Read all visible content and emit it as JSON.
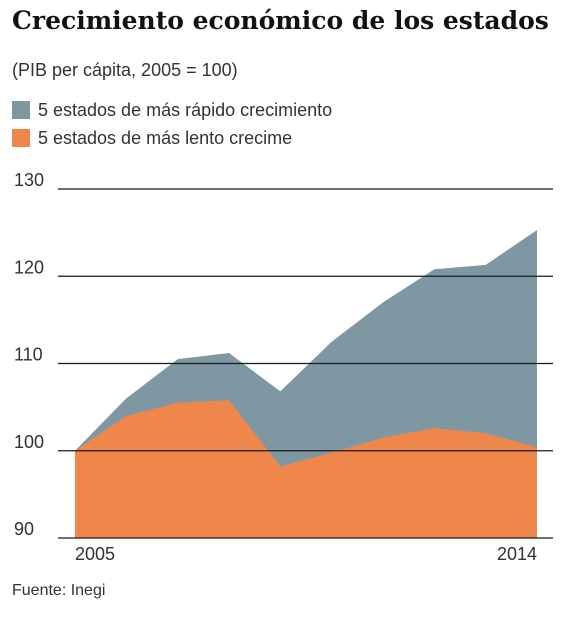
{
  "chart_data": {
    "type": "area",
    "title": "Crecimiento económico de los estados",
    "subtitle": "(PIB per cápita, 2005 = 100)",
    "x": [
      2005,
      2006,
      2007,
      2008,
      2009,
      2010,
      2011,
      2012,
      2013,
      2014
    ],
    "x_tick_labels": [
      "2005",
      "2014"
    ],
    "y_ticks": [
      90,
      100,
      110,
      120,
      130
    ],
    "ylim": [
      90,
      130
    ],
    "series": [
      {
        "name": "5 estados de más rápido crecimiento",
        "color": "#7f97a3",
        "values": [
          100,
          106,
          110.5,
          111.2,
          106.8,
          112.5,
          117,
          120.8,
          121.3,
          125.3
        ]
      },
      {
        "name": "5 estados de más lento crecime",
        "color": "#f0874a",
        "values": [
          100,
          104,
          105.5,
          105.8,
          98.2,
          99.8,
          101.5,
          102.6,
          102,
          100.4
        ]
      }
    ],
    "grid": true,
    "legend_position": "top-left",
    "source": "Fuente: Inegi"
  }
}
